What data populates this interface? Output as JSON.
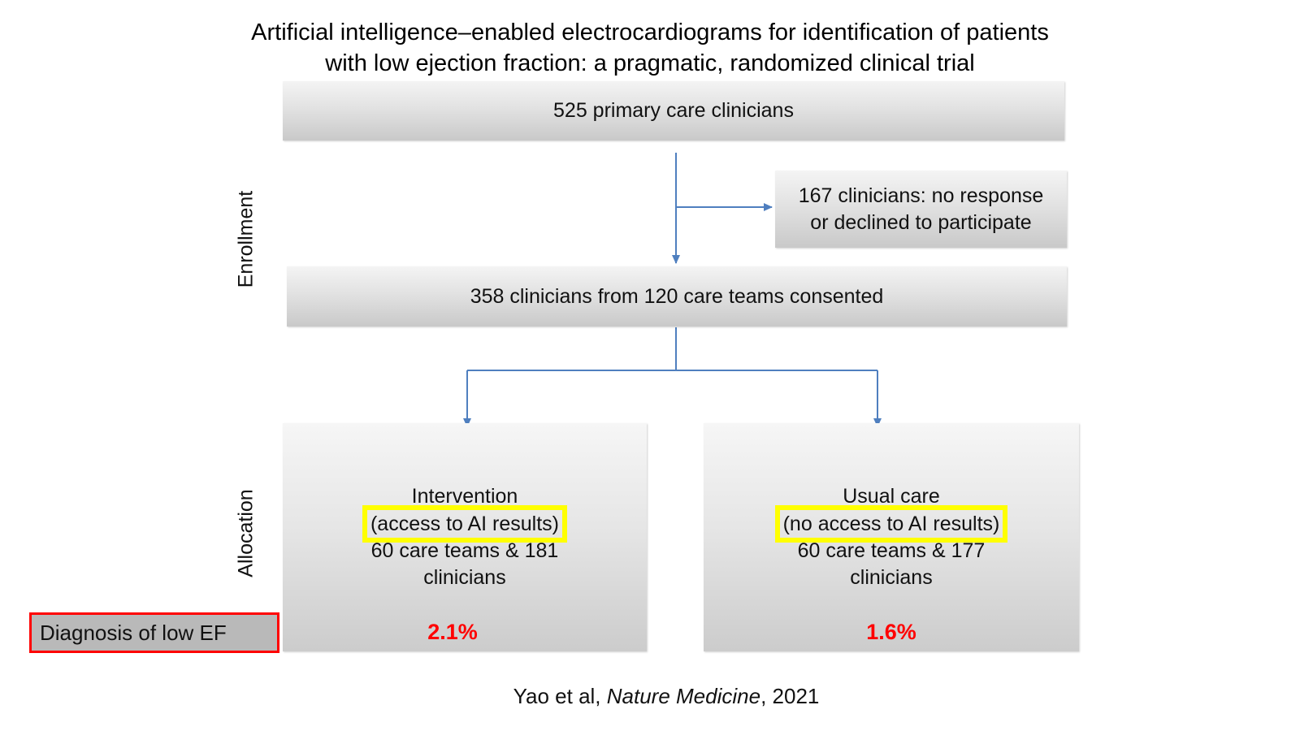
{
  "title": {
    "line1": "Artificial intelligence–enabled electrocardiograms for identification of patients",
    "line2": "with low ejection fraction: a pragmatic, randomized clinical trial"
  },
  "boxes": {
    "primary": "525 primary care clinicians",
    "excluded_line1": "167 clinicians: no response",
    "excluded_line2": "or declined to participate",
    "consented": "358 clinicians from 120 care teams consented"
  },
  "arms": {
    "intervention": {
      "name": "Intervention",
      "access": "(access to AI results)",
      "size_line1": "60 care teams & 181",
      "size_line2": "clinicians",
      "outcome": "2.1%"
    },
    "usual_care": {
      "name": "Usual care",
      "access": "(no access to AI results)",
      "size_line1": "60 care teams & 177",
      "size_line2": "clinicians",
      "outcome": "1.6%"
    }
  },
  "stage_labels": {
    "enrollment": "Enrollment",
    "allocation": "Allocation"
  },
  "outcome_label": "Diagnosis of low EF",
  "citation": {
    "authors": "Yao et al, ",
    "journal": "Nature Medicine",
    "year": ", 2021"
  },
  "colors": {
    "arrow": "#4f7fbf",
    "highlight": "#ffff00",
    "outcome_text": "#ff0000",
    "outcome_border": "#ff0000"
  }
}
